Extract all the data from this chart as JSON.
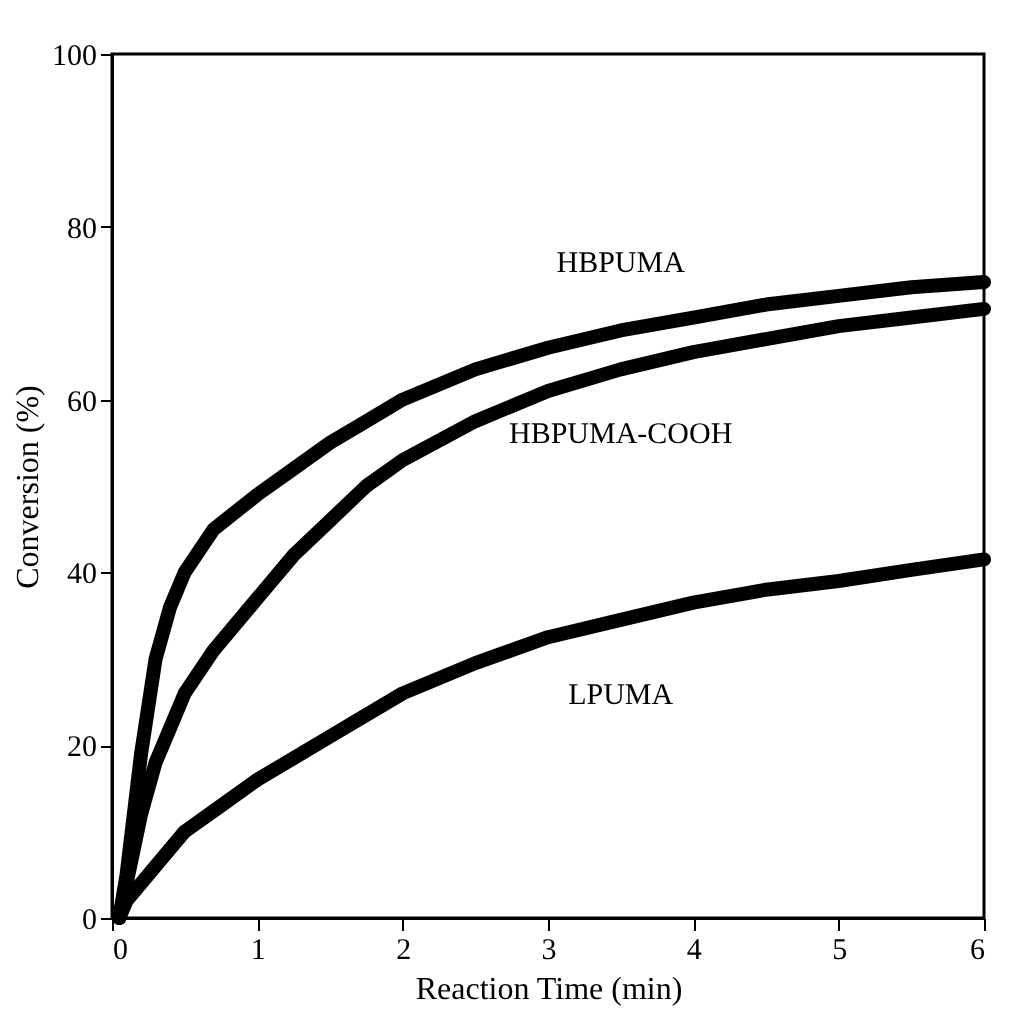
{
  "chart_data": {
    "type": "line",
    "xlabel": "Reaction Time (min)",
    "ylabel": "Conversion (%)",
    "xlim": [
      0,
      6
    ],
    "xticks": [
      0,
      1,
      2,
      3,
      4,
      5,
      6
    ],
    "ylim": [
      0,
      100
    ],
    "yticks": [
      0,
      20,
      40,
      60,
      80,
      100
    ],
    "grid": false,
    "line_style": "solid",
    "series": [
      {
        "name": "HBPUMA",
        "color": "#000000",
        "x": [
          0.05,
          0.1,
          0.2,
          0.3,
          0.4,
          0.5,
          0.7,
          1,
          1.25,
          1.5,
          1.75,
          2,
          2.5,
          3,
          3.5,
          4,
          4.5,
          5,
          5.5,
          6
        ],
        "values": [
          0,
          5,
          19,
          30,
          36,
          40,
          45,
          49,
          52,
          55,
          57.5,
          60,
          63.5,
          66,
          68,
          69.5,
          71,
          72,
          73,
          73.6
        ]
      },
      {
        "name": "HBPUMA-COOH",
        "color": "#000000",
        "x": [
          0.05,
          0.1,
          0.2,
          0.3,
          0.4,
          0.5,
          0.7,
          1,
          1.25,
          1.5,
          1.75,
          2,
          2.5,
          3,
          3.5,
          4,
          4.5,
          5,
          5.5,
          6
        ],
        "values": [
          0,
          4,
          12,
          18,
          22,
          26,
          31,
          37,
          42,
          46,
          50,
          53,
          57.5,
          61,
          63.5,
          65.5,
          67,
          68.5,
          69.5,
          70.5
        ]
      },
      {
        "name": "LPUMA",
        "color": "#000000",
        "x": [
          0.05,
          0.1,
          0.25,
          0.5,
          0.75,
          1,
          1.5,
          2,
          2.5,
          3,
          3.5,
          4,
          4.5,
          5,
          5.5,
          6
        ],
        "values": [
          0,
          2,
          5,
          10,
          13,
          16,
          21,
          26,
          29.5,
          32.5,
          34.5,
          36.5,
          38,
          39,
          40.3,
          41.5
        ]
      }
    ]
  }
}
